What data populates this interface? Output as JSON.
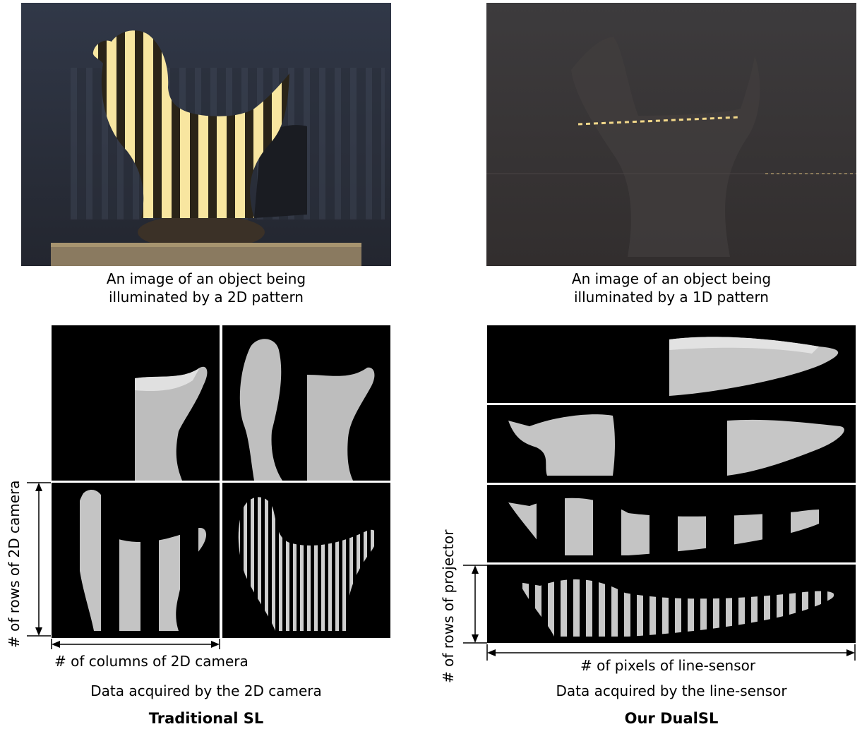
{
  "left": {
    "photo_caption": [
      "An image of an object being",
      "illuminated by a 2D pattern"
    ],
    "rows_label": "# of rows of 2D camera",
    "cols_label": "# of columns of 2D camera",
    "data_caption": "Data acquired by the 2D camera",
    "title": "Traditional SL"
  },
  "right": {
    "photo_caption": [
      "An image of an object being",
      "illuminated by a 1D pattern"
    ],
    "rows_label": "# of rows of projector",
    "pixels_label": "# of pixels of line-sensor",
    "data_caption": "Data acquired by the line-sensor",
    "title": "Our DualSL"
  },
  "colors": {
    "stripe": "#f6e49a",
    "dark_bg": "#000000",
    "photo_bg_left": "#2b3140",
    "photo_bg_right": "#3a3636"
  }
}
